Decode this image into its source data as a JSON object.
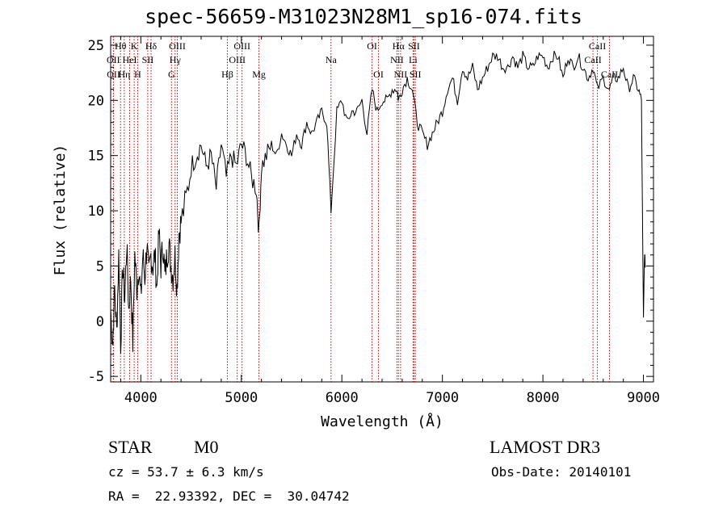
{
  "chart_data": {
    "type": "line",
    "title": "spec-56659-M31023N28M1_sp16-074.fits",
    "xlabel": "Wavelength (Å)",
    "ylabel": "Flux (relative)",
    "xlim": [
      3700,
      9100
    ],
    "ylim": [
      -5.5,
      25.8
    ],
    "xticks": [
      4000,
      5000,
      6000,
      7000,
      8000,
      9000
    ],
    "yticks": [
      -5,
      0,
      5,
      10,
      15,
      20,
      25
    ],
    "grid": false,
    "series": [
      {
        "x": [
          3700,
          3720,
          3740,
          3760,
          3780,
          3800,
          3820,
          3840,
          3860,
          3880,
          3900,
          3920,
          3940,
          3960,
          3980,
          4000,
          4020,
          4040,
          4060,
          4080,
          4100,
          4120,
          4140,
          4160,
          4180,
          4200,
          4220,
          4240,
          4260,
          4280,
          4300,
          4320,
          4340,
          4360,
          4380,
          4400,
          4450,
          4500,
          4550,
          4600,
          4650,
          4700,
          4750,
          4800,
          4850,
          4900,
          4950,
          5000,
          5050,
          5100,
          5150,
          5175,
          5200,
          5250,
          5300,
          5350,
          5400,
          5450,
          5500,
          5550,
          5600,
          5650,
          5700,
          5750,
          5800,
          5850,
          5892,
          5950,
          6000,
          6050,
          6100,
          6150,
          6200,
          6250,
          6300,
          6350,
          6400,
          6450,
          6500,
          6550,
          6563,
          6600,
          6650,
          6700,
          6750,
          6800,
          6850,
          6900,
          6950,
          7000,
          7050,
          7100,
          7150,
          7200,
          7250,
          7300,
          7350,
          7400,
          7450,
          7500,
          7550,
          7600,
          7650,
          7700,
          7750,
          7800,
          7850,
          7900,
          7950,
          8000,
          8050,
          8100,
          8150,
          8200,
          8250,
          8300,
          8350,
          8400,
          8450,
          8500,
          8542,
          8600,
          8662,
          8700,
          8750,
          8800,
          8850,
          8900,
          8950,
          8980,
          9000,
          9010,
          9020
        ],
        "y": [
          1,
          -2,
          3,
          -1,
          6,
          -2,
          5,
          2,
          7,
          1,
          4,
          -2,
          6,
          3,
          5,
          2,
          6,
          4,
          7,
          4,
          6,
          5,
          6,
          3,
          8,
          5,
          7,
          4,
          6,
          7,
          5,
          4,
          6,
          3,
          8,
          9,
          11,
          14,
          15,
          16,
          14,
          15,
          12,
          16,
          13,
          15,
          14,
          16,
          15,
          13,
          12,
          8,
          14,
          15,
          16,
          15,
          17,
          16,
          15,
          17,
          16,
          18,
          17,
          18,
          19,
          18,
          10,
          19,
          20,
          18,
          19,
          19,
          20,
          17,
          21,
          19,
          20,
          20,
          21,
          21,
          20,
          21,
          22,
          21,
          18,
          17,
          16,
          17,
          18,
          19,
          21,
          22,
          20,
          23,
          22,
          23,
          21,
          22,
          23,
          24,
          24,
          23,
          23,
          24,
          23,
          24,
          23,
          23,
          24,
          24,
          23,
          24,
          24,
          22,
          24,
          23,
          24,
          23,
          22,
          23,
          21,
          22,
          21,
          22,
          22,
          23,
          21,
          22,
          21,
          20,
          0,
          6,
          5
        ]
      }
    ],
    "emission_lines": [
      {
        "label": "Hθ",
        "x": 3798,
        "row": 0
      },
      {
        "label": "K",
        "x": 3934,
        "row": 0
      },
      {
        "label": "Hδ",
        "x": 4102,
        "row": 0
      },
      {
        "label": "OII",
        "x": 3727,
        "row": 1
      },
      {
        "label": "HeI",
        "x": 3889,
        "row": 1
      },
      {
        "label": "SII",
        "x": 4069,
        "row": 1
      },
      {
        "label": "OII",
        "x": 3729,
        "row": 2
      },
      {
        "label": "Hη",
        "x": 3835,
        "row": 2
      },
      {
        "label": "H",
        "x": 3969,
        "row": 2
      },
      {
        "label": "OIII",
        "x": 4363,
        "row": 0
      },
      {
        "label": "Hγ",
        "x": 4341,
        "row": 1
      },
      {
        "label": "G",
        "x": 4305,
        "row": 2
      },
      {
        "label": "OIII",
        "x": 5007,
        "row": 0
      },
      {
        "label": "OIII",
        "x": 4959,
        "row": 1
      },
      {
        "label": "Hβ",
        "x": 4861,
        "row": 2
      },
      {
        "label": "Mg",
        "x": 5175,
        "row": 2
      },
      {
        "label": "Na",
        "x": 5892,
        "row": 1
      },
      {
        "label": "OI",
        "x": 6300,
        "row": 0
      },
      {
        "label": "OI",
        "x": 6364,
        "row": 2
      },
      {
        "label": "Hα",
        "x": 6563,
        "row": 0
      },
      {
        "label": "SII",
        "x": 6717,
        "row": 0
      },
      {
        "label": "NII",
        "x": 6548,
        "row": 1
      },
      {
        "label": "Li",
        "x": 6708,
        "row": 1
      },
      {
        "label": "NII",
        "x": 6584,
        "row": 2
      },
      {
        "label": "SII",
        "x": 6731,
        "row": 2
      },
      {
        "label": "CaII",
        "x": 8542,
        "row": 0
      },
      {
        "label": "CaII",
        "x": 8498,
        "row": 1
      },
      {
        "label": "CaII",
        "x": 8662,
        "row": 2
      }
    ],
    "line_color": "#000000",
    "marker_color": "#cc0000"
  },
  "info": {
    "object_class": "STAR",
    "subclass": "M0",
    "survey": "LAMOST DR3",
    "redshift": "cz = 53.7 ± 6.3 km/s",
    "obs_date": "Obs-Date: 20140101",
    "coords": "RA =  22.93392, DEC =  30.04742"
  }
}
